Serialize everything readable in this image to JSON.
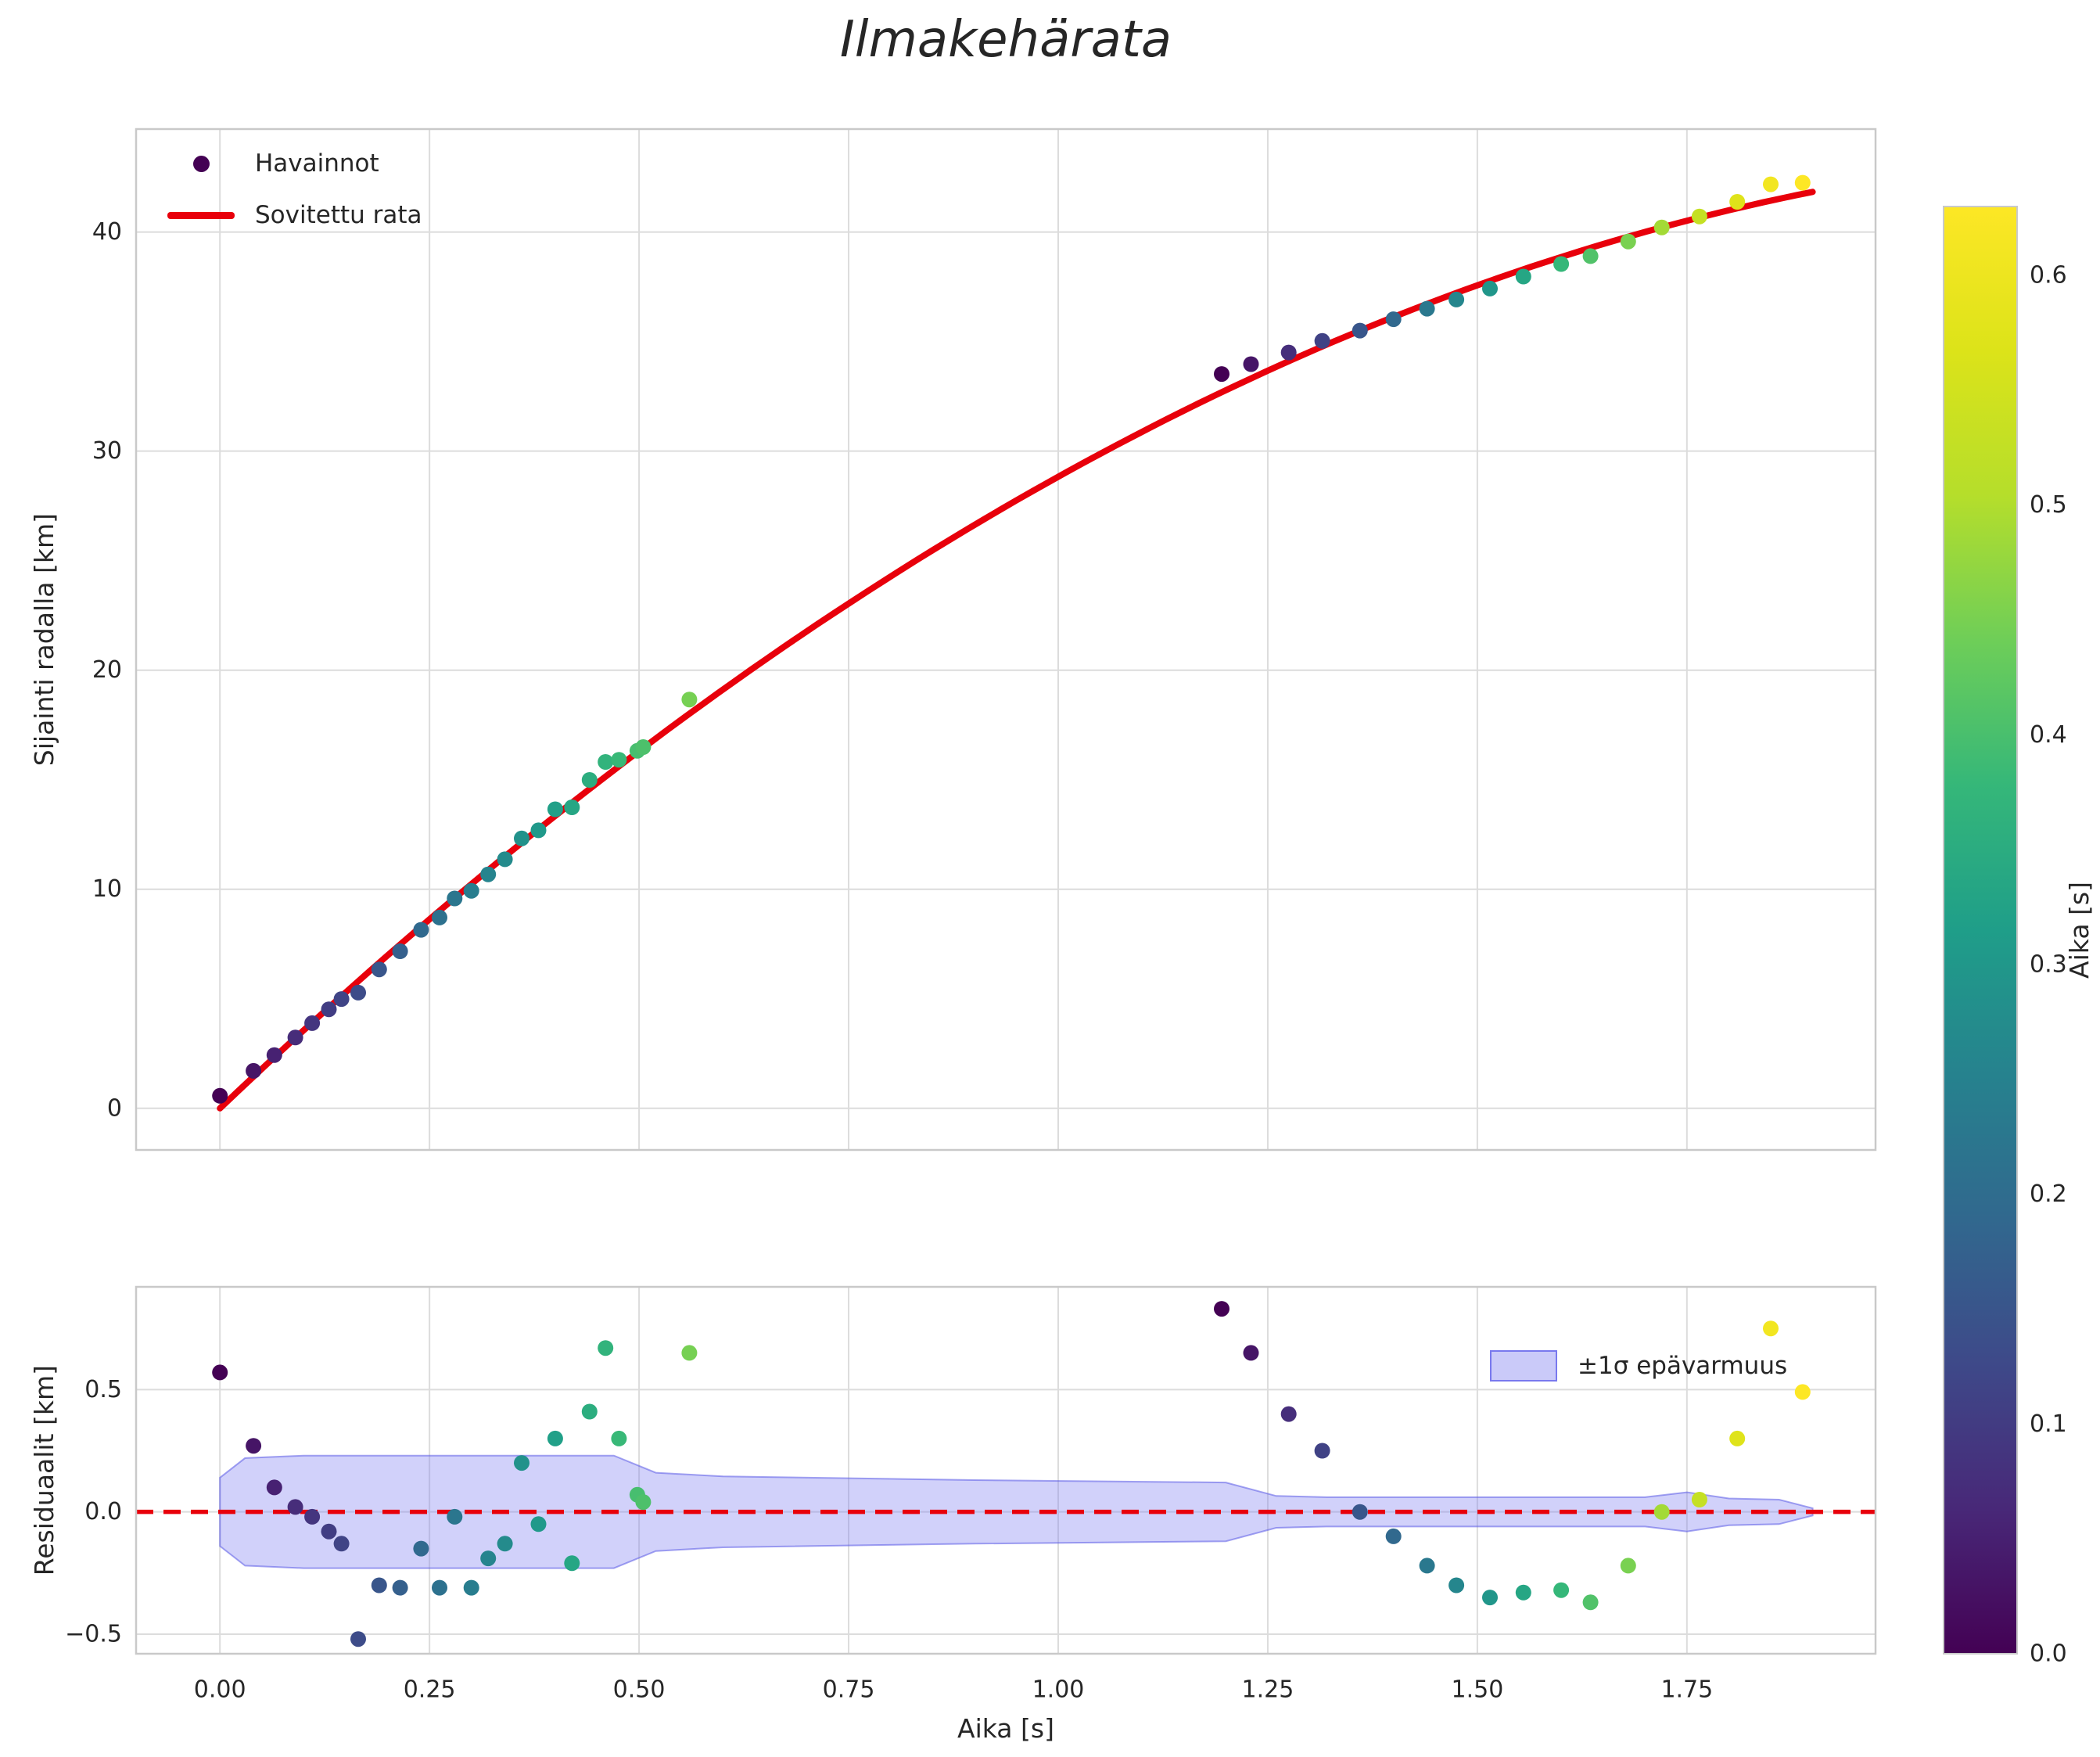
{
  "figure": {
    "background": "#ffffff"
  },
  "chart_data": [
    {
      "type": "scatter",
      "title": "Ilmakehärata",
      "xlabel": "",
      "ylabel": "Sijainti radalla [km]",
      "xlim": [
        -0.1,
        1.975
      ],
      "ylim": [
        -1.9,
        44.7
      ],
      "grid": true,
      "legend_position": "upper left",
      "yticks": {
        "values": [
          0,
          10,
          20,
          30,
          40
        ],
        "labels": [
          "0",
          "10",
          "20",
          "30",
          "40"
        ]
      },
      "series": [
        {
          "name": "Havainnot",
          "type": "scatter",
          "colormap": "viridis",
          "x": [
            0.0,
            0.04,
            0.065,
            0.09,
            0.11,
            0.13,
            0.145,
            0.165,
            0.19,
            0.215,
            0.24,
            0.262,
            0.28,
            0.3,
            0.32,
            0.34,
            0.36,
            0.38,
            0.4,
            0.42,
            0.441,
            0.46,
            0.476,
            0.498,
            0.505,
            0.56,
            1.195,
            1.23,
            1.275,
            1.315,
            1.36,
            1.4,
            1.44,
            1.475,
            1.515,
            1.555,
            1.6,
            1.635,
            1.68,
            1.72,
            1.765,
            1.81,
            1.85,
            1.888
          ],
          "y": [
            0.57,
            1.71,
            2.43,
            3.23,
            3.89,
            4.52,
            4.99,
            5.28,
            6.34,
            7.17,
            8.15,
            8.71,
            9.58,
            9.93,
            10.68,
            11.37,
            12.32,
            12.69,
            13.65,
            13.74,
            14.99,
            15.81,
            15.91,
            16.32,
            16.49,
            18.66,
            33.52,
            33.97,
            34.5,
            35.03,
            35.5,
            36.02,
            36.5,
            36.92,
            37.42,
            37.97,
            38.54,
            38.9,
            39.57,
            40.21,
            40.71,
            41.38,
            42.18,
            42.25
          ],
          "color_value": [
            0.0,
            0.032,
            0.052,
            0.072,
            0.088,
            0.104,
            0.116,
            0.132,
            0.152,
            0.172,
            0.192,
            0.21,
            0.224,
            0.24,
            0.256,
            0.272,
            0.288,
            0.304,
            0.32,
            0.336,
            0.353,
            0.368,
            0.381,
            0.398,
            0.404,
            0.448,
            0.0,
            0.033,
            0.074,
            0.112,
            0.153,
            0.191,
            0.228,
            0.26,
            0.298,
            0.335,
            0.377,
            0.409,
            0.451,
            0.488,
            0.53,
            0.572,
            0.609,
            0.644
          ]
        },
        {
          "name": "Sovitettu rata",
          "type": "line",
          "color": "#e8000b",
          "model": "s(t) = v0*t + 0.5*a*t^2",
          "v0": 36.4,
          "a": -15.14,
          "t_min": 0.0,
          "t_max": 1.9
        }
      ]
    },
    {
      "type": "scatter",
      "title": "",
      "xlabel": "Aika [s]",
      "ylabel": "Residuaalit [km]",
      "xlim": [
        -0.1,
        1.975
      ],
      "ylim": [
        -0.58,
        0.92
      ],
      "grid": true,
      "legend_position": "upper right",
      "yticks": {
        "values": [
          -0.5,
          0,
          0.5
        ],
        "labels": [
          "−0.5",
          "0.0",
          "0.5"
        ]
      },
      "xticks": {
        "values": [
          0,
          0.25,
          0.5,
          0.75,
          1,
          1.25,
          1.5,
          1.75
        ],
        "labels": [
          "0.00",
          "0.25",
          "0.50",
          "0.75",
          "1.00",
          "1.25",
          "1.50",
          "1.75"
        ]
      },
      "series": [
        {
          "name": "Residuaalit",
          "type": "scatter",
          "colormap": "viridis",
          "x": [
            0.0,
            0.04,
            0.065,
            0.09,
            0.11,
            0.13,
            0.145,
            0.165,
            0.19,
            0.215,
            0.24,
            0.262,
            0.28,
            0.3,
            0.32,
            0.34,
            0.36,
            0.38,
            0.4,
            0.42,
            0.441,
            0.46,
            0.476,
            0.498,
            0.505,
            0.56,
            1.195,
            1.23,
            1.275,
            1.315,
            1.36,
            1.4,
            1.44,
            1.475,
            1.515,
            1.555,
            1.6,
            1.635,
            1.68,
            1.72,
            1.765,
            1.81,
            1.85,
            1.888
          ],
          "y": [
            0.57,
            0.27,
            0.1,
            0.02,
            -0.02,
            -0.08,
            -0.13,
            -0.52,
            -0.3,
            -0.31,
            -0.15,
            -0.31,
            -0.02,
            -0.31,
            -0.19,
            -0.13,
            0.2,
            -0.05,
            0.3,
            -0.21,
            0.41,
            0.67,
            0.3,
            0.07,
            0.04,
            0.65,
            0.83,
            0.65,
            0.4,
            0.25,
            0.0,
            -0.1,
            -0.22,
            -0.3,
            -0.35,
            -0.33,
            -0.32,
            -0.37,
            -0.22,
            0.0,
            0.05,
            0.3,
            0.75,
            0.49
          ],
          "color_value": [
            0.0,
            0.032,
            0.052,
            0.072,
            0.088,
            0.104,
            0.116,
            0.132,
            0.152,
            0.172,
            0.192,
            0.21,
            0.224,
            0.24,
            0.256,
            0.272,
            0.288,
            0.304,
            0.32,
            0.336,
            0.353,
            0.368,
            0.381,
            0.398,
            0.404,
            0.448,
            0.0,
            0.033,
            0.074,
            0.112,
            0.153,
            0.191,
            0.228,
            0.26,
            0.298,
            0.335,
            0.377,
            0.409,
            0.451,
            0.488,
            0.53,
            0.572,
            0.609,
            0.644
          ]
        },
        {
          "name": "±1σ epävarmuus",
          "type": "band",
          "fill": "#7b7bf0",
          "edge": "#5a5ae6",
          "opacity": 0.35,
          "x": [
            0.0,
            0.03,
            0.1,
            0.47,
            0.52,
            0.6,
            0.9,
            1.2,
            1.26,
            1.32,
            1.6,
            1.7,
            1.75,
            1.8,
            1.86,
            1.9
          ],
          "half_width": [
            0.14,
            0.22,
            0.23,
            0.23,
            0.16,
            0.145,
            0.13,
            0.12,
            0.065,
            0.06,
            0.06,
            0.06,
            0.08,
            0.055,
            0.05,
            0.015
          ]
        },
        {
          "name": "zero-line",
          "type": "hline",
          "y": 0,
          "style": "dashed",
          "color": "#e8000b"
        }
      ]
    }
  ],
  "colorbar": {
    "label": "Aika [s]",
    "colormap": "viridis",
    "vmin": 0.0,
    "vmax": 0.63,
    "ticks": {
      "values": [
        0,
        0.1,
        0.2,
        0.3,
        0.4,
        0.5,
        0.6
      ],
      "labels": [
        "0.0",
        "0.1",
        "0.2",
        "0.3",
        "0.4",
        "0.5",
        "0.6"
      ]
    }
  }
}
